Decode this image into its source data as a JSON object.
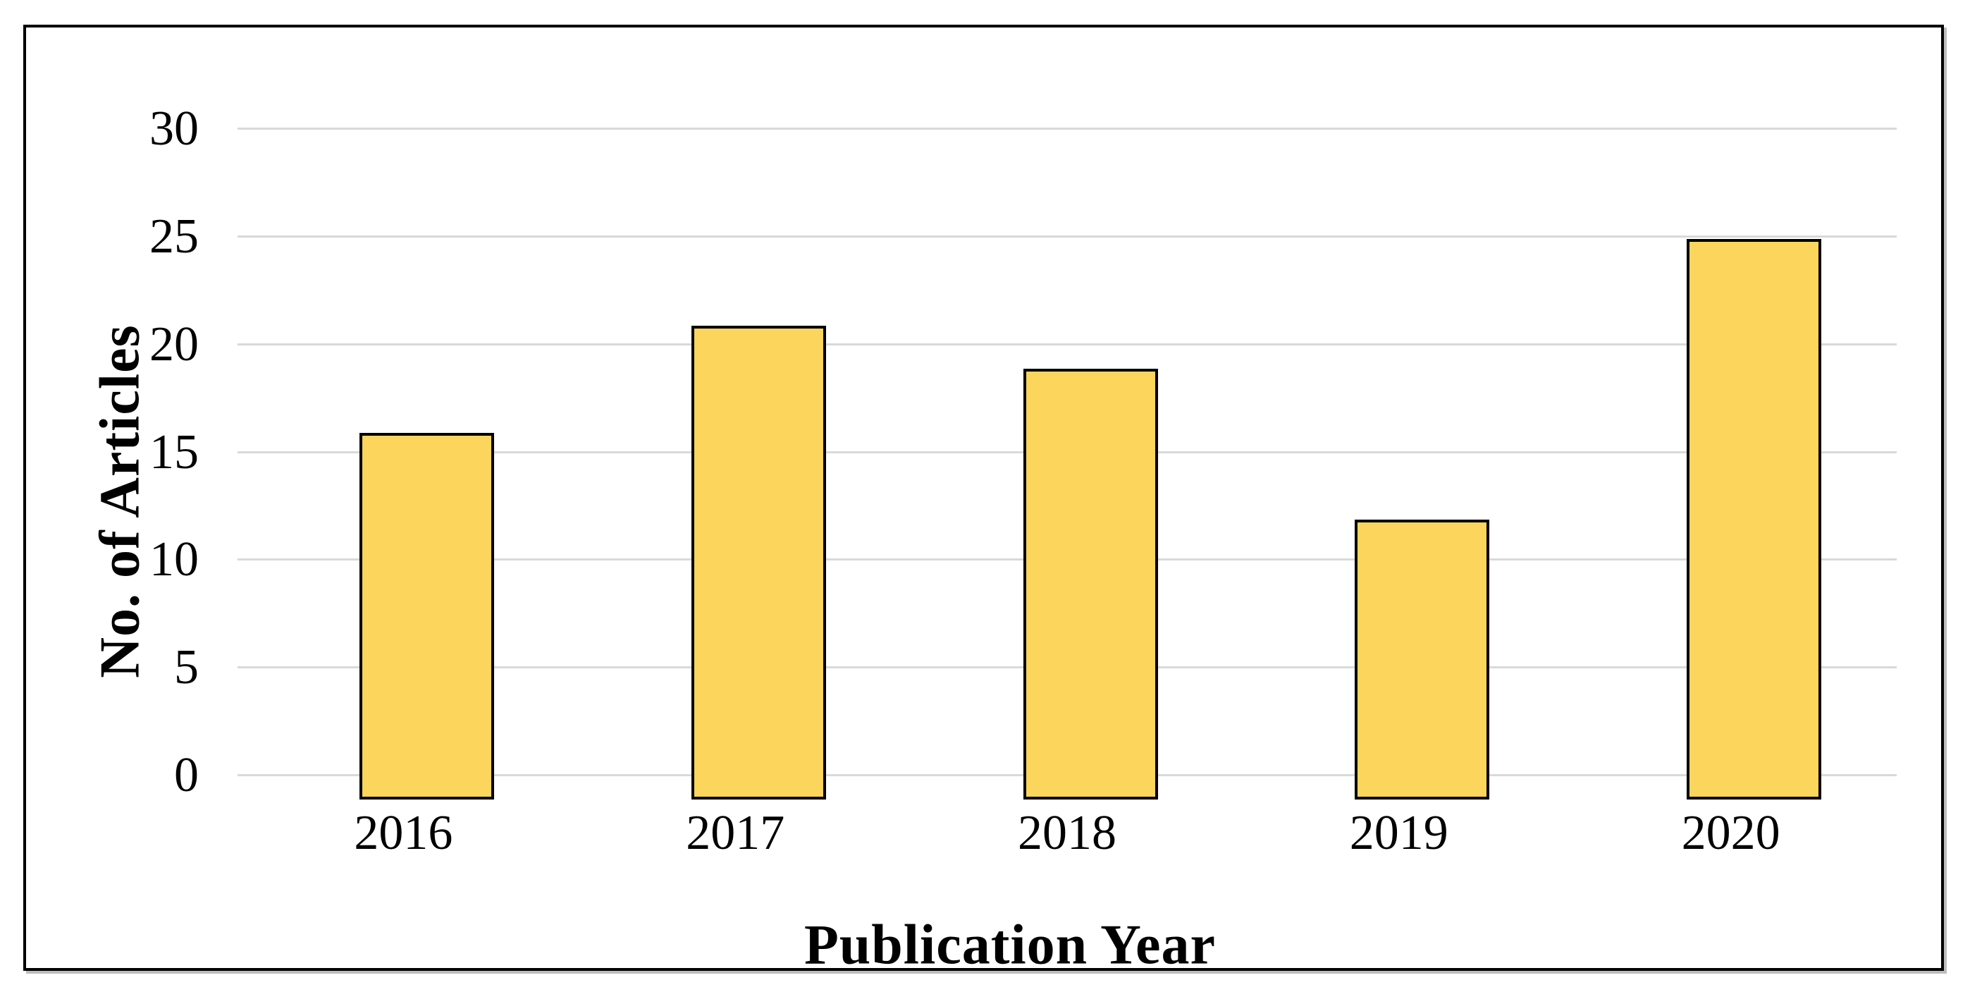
{
  "chart_data": {
    "type": "bar",
    "title": "",
    "categories": [
      "2016",
      "2017",
      "2018",
      "2019",
      "2020"
    ],
    "values": [
      17,
      22,
      20,
      13,
      26
    ],
    "xlabel": "Publication Year",
    "ylabel": "No. of Articles",
    "ylim": [
      0,
      30
    ],
    "yticks": [
      0,
      5,
      10,
      15,
      20,
      25,
      30
    ],
    "grid": "horizontal-only",
    "legend": "none",
    "colors": {
      "bar_fill": "#FCD55C",
      "bar_border": "#000000",
      "gridline": "#D9D9D9",
      "frame_border": "#000000",
      "background": "#FFFFFF",
      "text": "#000000"
    }
  }
}
